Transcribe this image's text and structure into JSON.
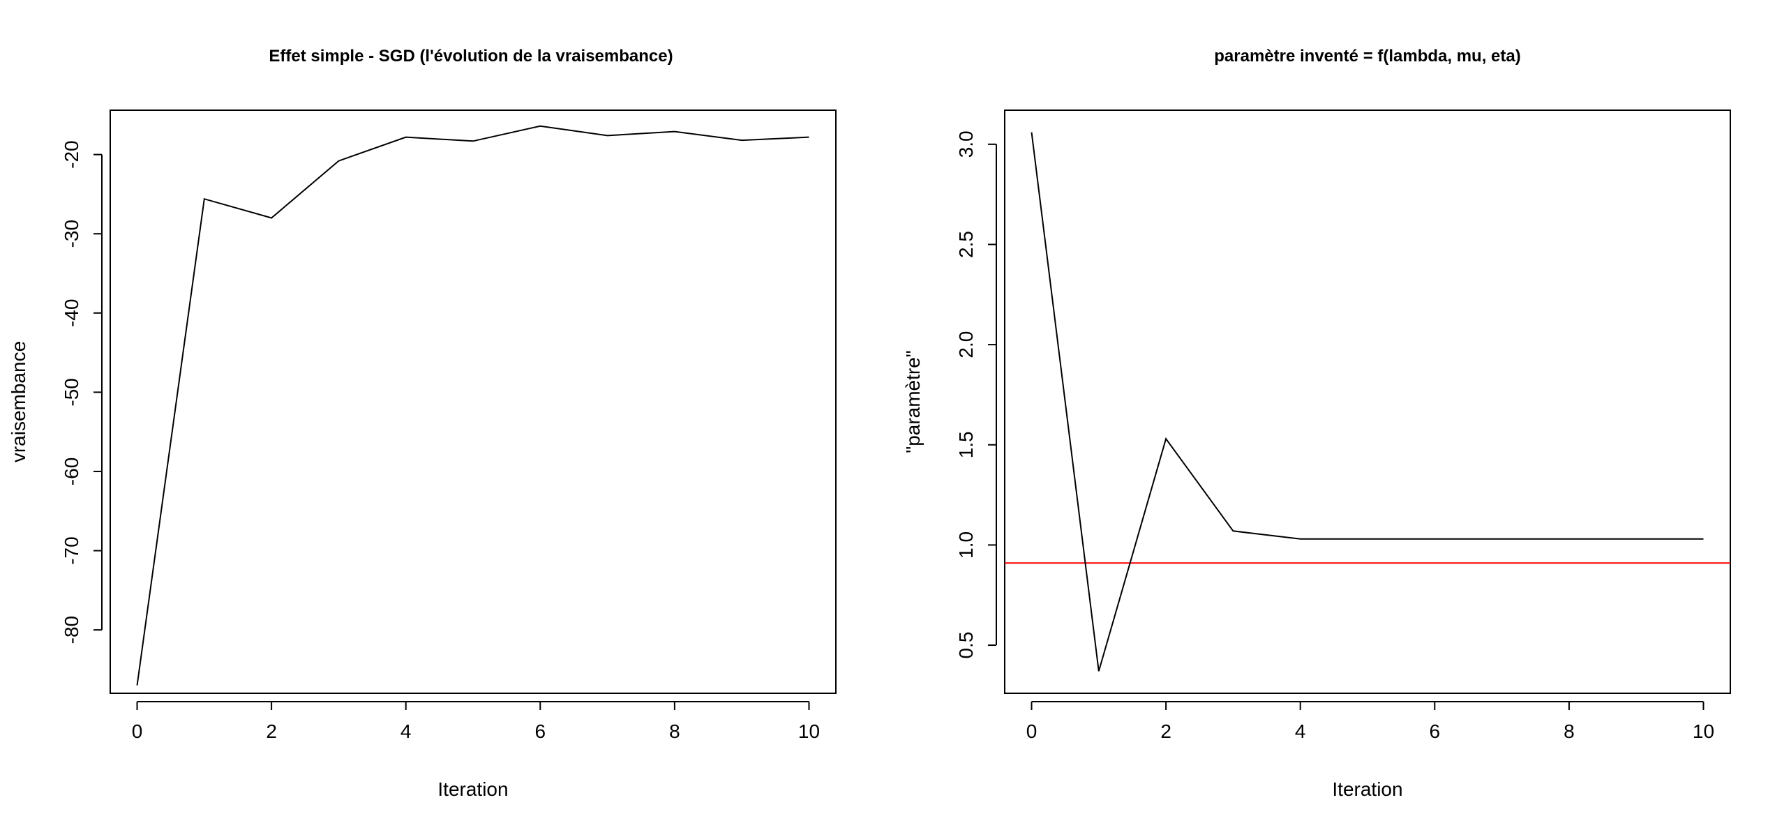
{
  "chart_data": [
    {
      "type": "line",
      "title": "Effet simple - SGD (l'évolution de la vraisembance)",
      "xlabel": "Iteration",
      "ylabel": "vraisembance",
      "xlim": [
        -0.4,
        10.4
      ],
      "ylim": [
        -88.0,
        -14.4
      ],
      "xticks": [
        0,
        2,
        4,
        6,
        8,
        10
      ],
      "xtick_labels": [
        "0",
        "2",
        "4",
        "6",
        "8",
        "10"
      ],
      "yticks": [
        -80,
        -70,
        -60,
        -50,
        -40,
        -30,
        -20
      ],
      "ytick_labels": [
        "-80",
        "-70",
        "-60",
        "-50",
        "-40",
        "-30",
        "-20"
      ],
      "grid": false,
      "series": [
        {
          "color": "#000000",
          "x": [
            0,
            1,
            2,
            3,
            4,
            5,
            6,
            7,
            8,
            9,
            10
          ],
          "y": [
            -87.0,
            -25.6,
            -28.0,
            -20.8,
            -17.8,
            -18.3,
            -16.4,
            -17.6,
            -17.1,
            -18.2,
            -17.8
          ]
        }
      ],
      "hlines": []
    },
    {
      "type": "line",
      "title": "paramètre inventé = f(lambda, mu, eta)",
      "xlabel": "Iteration",
      "ylabel": "\"paramètre\"",
      "xlim": [
        -0.4,
        10.4
      ],
      "ylim": [
        0.26,
        3.17
      ],
      "xticks": [
        0,
        2,
        4,
        6,
        8,
        10
      ],
      "xtick_labels": [
        "0",
        "2",
        "4",
        "6",
        "8",
        "10"
      ],
      "yticks": [
        0.5,
        1.0,
        1.5,
        2.0,
        2.5,
        3.0
      ],
      "ytick_labels": [
        "0.5",
        "1.0",
        "1.5",
        "2.0",
        "2.5",
        "3.0"
      ],
      "grid": false,
      "series": [
        {
          "color": "#000000",
          "x": [
            0,
            1,
            2,
            3,
            4,
            5,
            6,
            7,
            8,
            9,
            10
          ],
          "y": [
            3.06,
            0.37,
            1.53,
            1.07,
            1.03,
            1.03,
            1.03,
            1.03,
            1.03,
            1.03,
            1.03
          ]
        }
      ],
      "hlines": [
        {
          "y": 0.91,
          "color": "#ff0000"
        }
      ]
    }
  ]
}
